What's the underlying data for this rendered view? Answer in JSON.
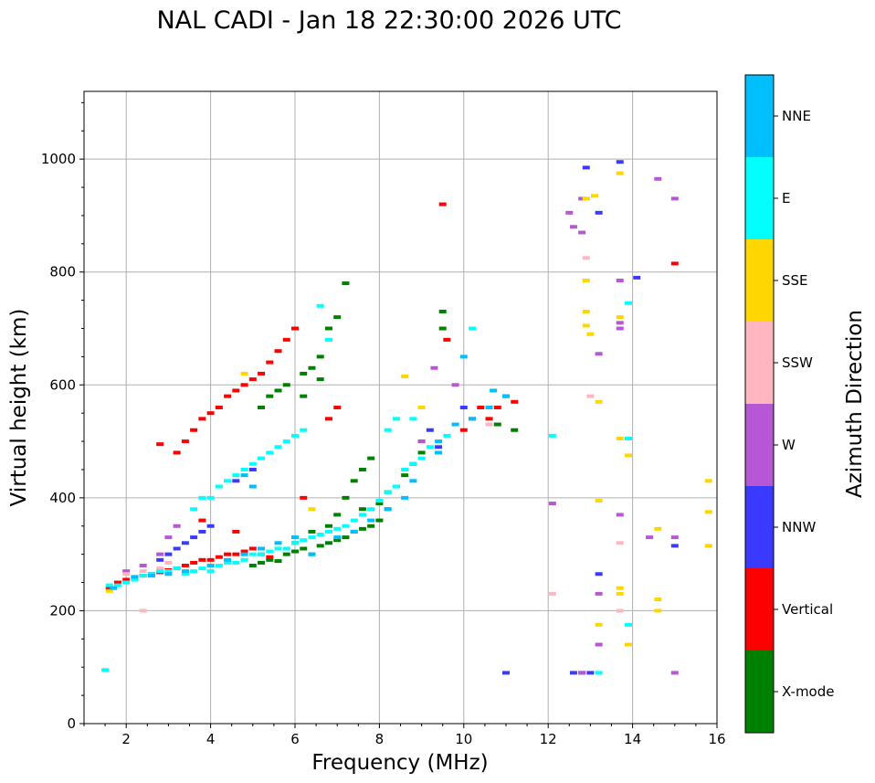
{
  "chart_data": {
    "type": "scatter",
    "title": "NAL CADI - Jan 18 22:30:00 2026 UTC",
    "xlabel": "Frequency (MHz)",
    "ylabel": "Virtual height (km)",
    "xlim": [
      1,
      16
    ],
    "ylim": [
      0,
      1120
    ],
    "xticks": [
      2,
      4,
      6,
      8,
      10,
      12,
      14,
      16
    ],
    "yticks": [
      0,
      200,
      400,
      600,
      800,
      1000
    ],
    "grid": true,
    "colorbar": {
      "label": "Azimuth Direction",
      "categories": [
        "X-mode",
        "Vertical",
        "NNW",
        "W",
        "SSW",
        "SSE",
        "E",
        "NNE"
      ],
      "colors": [
        "#008000",
        "#ff0000",
        "#3a3aff",
        "#b657d6",
        "#ffb6c1",
        "#ffd700",
        "#00ffff",
        "#00bfff"
      ]
    },
    "series": [
      {
        "name": "X-mode",
        "points": [
          [
            5.0,
            280
          ],
          [
            5.2,
            285
          ],
          [
            5.4,
            290
          ],
          [
            5.6,
            288
          ],
          [
            5.8,
            300
          ],
          [
            6.0,
            305
          ],
          [
            6.2,
            310
          ],
          [
            6.4,
            300
          ],
          [
            6.6,
            315
          ],
          [
            6.8,
            320
          ],
          [
            7.0,
            325
          ],
          [
            7.2,
            330
          ],
          [
            7.4,
            340
          ],
          [
            7.6,
            345
          ],
          [
            7.8,
            350
          ],
          [
            8.0,
            360
          ],
          [
            8.2,
            380
          ],
          [
            8.4,
            420
          ],
          [
            8.6,
            440
          ],
          [
            8.8,
            460
          ],
          [
            9.0,
            480
          ],
          [
            6.8,
            350
          ],
          [
            7.0,
            370
          ],
          [
            7.2,
            400
          ],
          [
            7.4,
            430
          ],
          [
            7.6,
            450
          ],
          [
            7.8,
            470
          ],
          [
            8.0,
            390
          ],
          [
            8.2,
            410
          ],
          [
            5.2,
            560
          ],
          [
            5.4,
            580
          ],
          [
            5.6,
            590
          ],
          [
            5.8,
            600
          ],
          [
            6.2,
            620
          ],
          [
            6.4,
            630
          ],
          [
            6.6,
            650
          ],
          [
            6.8,
            700
          ],
          [
            7.0,
            720
          ],
          [
            7.2,
            780
          ],
          [
            9.5,
            700
          ],
          [
            9.5,
            730
          ],
          [
            10.8,
            530
          ],
          [
            11.2,
            520
          ],
          [
            6.2,
            580
          ],
          [
            6.6,
            610
          ],
          [
            7.6,
            380
          ],
          [
            6.0,
            320
          ],
          [
            6.4,
            340
          ]
        ]
      },
      {
        "name": "Vertical",
        "points": [
          [
            1.6,
            240
          ],
          [
            1.8,
            250
          ],
          [
            2.0,
            255
          ],
          [
            2.2,
            258
          ],
          [
            2.4,
            262
          ],
          [
            2.6,
            265
          ],
          [
            2.8,
            268
          ],
          [
            3.0,
            272
          ],
          [
            3.2,
            275
          ],
          [
            3.4,
            280
          ],
          [
            3.6,
            285
          ],
          [
            3.8,
            290
          ],
          [
            4.0,
            290
          ],
          [
            4.2,
            295
          ],
          [
            4.4,
            300
          ],
          [
            4.6,
            300
          ],
          [
            4.8,
            305
          ],
          [
            5.0,
            310
          ],
          [
            5.2,
            300
          ],
          [
            5.4,
            295
          ],
          [
            3.2,
            480
          ],
          [
            3.4,
            500
          ],
          [
            3.6,
            520
          ],
          [
            3.8,
            540
          ],
          [
            4.0,
            550
          ],
          [
            4.2,
            560
          ],
          [
            4.4,
            580
          ],
          [
            4.6,
            590
          ],
          [
            4.8,
            600
          ],
          [
            5.0,
            610
          ],
          [
            5.2,
            620
          ],
          [
            5.4,
            640
          ],
          [
            5.6,
            660
          ],
          [
            5.8,
            680
          ],
          [
            6.0,
            700
          ],
          [
            6.8,
            540
          ],
          [
            7.0,
            560
          ],
          [
            9.5,
            920
          ],
          [
            9.6,
            680
          ],
          [
            10.0,
            520
          ],
          [
            10.2,
            540
          ],
          [
            10.4,
            560
          ],
          [
            10.6,
            540
          ],
          [
            10.8,
            560
          ],
          [
            11.0,
            580
          ],
          [
            11.2,
            570
          ],
          [
            15.0,
            815
          ],
          [
            2.8,
            495
          ],
          [
            4.6,
            340
          ],
          [
            3.8,
            360
          ],
          [
            6.2,
            400
          ]
        ]
      },
      {
        "name": "NNW",
        "points": [
          [
            2.8,
            290
          ],
          [
            3.0,
            300
          ],
          [
            3.2,
            310
          ],
          [
            3.4,
            320
          ],
          [
            3.6,
            330
          ],
          [
            3.8,
            340
          ],
          [
            4.0,
            350
          ],
          [
            4.6,
            430
          ],
          [
            5.0,
            450
          ],
          [
            9.0,
            500
          ],
          [
            9.2,
            520
          ],
          [
            9.4,
            490
          ],
          [
            10.0,
            560
          ],
          [
            11.0,
            90
          ],
          [
            12.6,
            90
          ],
          [
            12.8,
            90
          ],
          [
            13.0,
            90
          ],
          [
            12.9,
            985
          ],
          [
            13.2,
            905
          ],
          [
            13.2,
            265
          ],
          [
            14.1,
            790
          ],
          [
            15.0,
            315
          ],
          [
            13.7,
            995
          ]
        ]
      },
      {
        "name": "W",
        "points": [
          [
            2.0,
            270
          ],
          [
            2.4,
            280
          ],
          [
            2.8,
            300
          ],
          [
            3.0,
            330
          ],
          [
            3.2,
            350
          ],
          [
            9.0,
            500
          ],
          [
            9.3,
            630
          ],
          [
            9.8,
            600
          ],
          [
            12.8,
            930
          ],
          [
            12.8,
            870
          ],
          [
            12.6,
            880
          ],
          [
            12.5,
            905
          ],
          [
            13.2,
            655
          ],
          [
            13.2,
            140
          ],
          [
            13.2,
            230
          ],
          [
            13.7,
            700
          ],
          [
            13.7,
            710
          ],
          [
            13.7,
            785
          ],
          [
            14.6,
            965
          ],
          [
            15.0,
            930
          ],
          [
            15.0,
            330
          ],
          [
            15.0,
            90
          ],
          [
            12.8,
            90
          ],
          [
            12.1,
            390
          ],
          [
            14.4,
            330
          ],
          [
            13.7,
            370
          ]
        ]
      },
      {
        "name": "SSW",
        "points": [
          [
            2.0,
            265
          ],
          [
            2.4,
            270
          ],
          [
            2.8,
            275
          ],
          [
            2.4,
            200
          ],
          [
            3.0,
            285
          ],
          [
            10.6,
            530
          ],
          [
            12.1,
            230
          ],
          [
            12.9,
            825
          ],
          [
            13.0,
            580
          ],
          [
            13.7,
            320
          ],
          [
            13.7,
            200
          ]
        ]
      },
      {
        "name": "SSE",
        "points": [
          [
            1.6,
            235
          ],
          [
            2.0,
            250
          ],
          [
            4.8,
            620
          ],
          [
            6.4,
            380
          ],
          [
            8.6,
            615
          ],
          [
            9.0,
            560
          ],
          [
            12.9,
            930
          ],
          [
            13.1,
            935
          ],
          [
            12.9,
            785
          ],
          [
            12.9,
            730
          ],
          [
            12.9,
            705
          ],
          [
            13.0,
            690
          ],
          [
            13.2,
            570
          ],
          [
            13.2,
            395
          ],
          [
            13.2,
            175
          ],
          [
            13.7,
            975
          ],
          [
            13.7,
            720
          ],
          [
            13.7,
            505
          ],
          [
            13.7,
            240
          ],
          [
            13.7,
            230
          ],
          [
            13.9,
            475
          ],
          [
            13.9,
            140
          ],
          [
            14.6,
            345
          ],
          [
            14.6,
            220
          ],
          [
            14.6,
            200
          ],
          [
            15.8,
            430
          ],
          [
            15.8,
            375
          ],
          [
            15.8,
            315
          ]
        ]
      },
      {
        "name": "E",
        "points": [
          [
            1.6,
            245
          ],
          [
            1.8,
            245
          ],
          [
            2.0,
            250
          ],
          [
            2.2,
            255
          ],
          [
            2.4,
            262
          ],
          [
            2.6,
            265
          ],
          [
            2.8,
            270
          ],
          [
            3.0,
            270
          ],
          [
            3.2,
            275
          ],
          [
            3.4,
            265
          ],
          [
            3.6,
            270
          ],
          [
            3.8,
            275
          ],
          [
            4.0,
            270
          ],
          [
            4.2,
            280
          ],
          [
            4.4,
            285
          ],
          [
            4.6,
            285
          ],
          [
            4.8,
            290
          ],
          [
            5.0,
            300
          ],
          [
            5.2,
            300
          ],
          [
            5.4,
            305
          ],
          [
            5.6,
            310
          ],
          [
            5.8,
            310
          ],
          [
            6.0,
            320
          ],
          [
            6.2,
            325
          ],
          [
            6.4,
            330
          ],
          [
            6.6,
            335
          ],
          [
            6.8,
            340
          ],
          [
            7.0,
            345
          ],
          [
            7.2,
            350
          ],
          [
            7.4,
            360
          ],
          [
            7.6,
            370
          ],
          [
            7.8,
            380
          ],
          [
            8.0,
            395
          ],
          [
            8.2,
            410
          ],
          [
            8.4,
            420
          ],
          [
            8.6,
            450
          ],
          [
            8.8,
            460
          ],
          [
            9.0,
            470
          ],
          [
            9.2,
            490
          ],
          [
            9.6,
            510
          ],
          [
            3.6,
            380
          ],
          [
            3.8,
            400
          ],
          [
            4.0,
            400
          ],
          [
            4.2,
            420
          ],
          [
            4.4,
            430
          ],
          [
            4.6,
            440
          ],
          [
            4.8,
            450
          ],
          [
            5.0,
            460
          ],
          [
            5.2,
            470
          ],
          [
            5.4,
            480
          ],
          [
            5.6,
            490
          ],
          [
            5.8,
            500
          ],
          [
            6.0,
            510
          ],
          [
            6.2,
            520
          ],
          [
            6.6,
            740
          ],
          [
            6.8,
            680
          ],
          [
            8.2,
            520
          ],
          [
            8.4,
            540
          ],
          [
            8.8,
            540
          ],
          [
            10.2,
            700
          ],
          [
            13.2,
            90
          ],
          [
            13.9,
            175
          ],
          [
            13.9,
            505
          ],
          [
            13.9,
            745
          ],
          [
            12.1,
            510
          ],
          [
            1.5,
            95
          ]
        ]
      },
      {
        "name": "NNE",
        "points": [
          [
            1.7,
            240
          ],
          [
            2.2,
            260
          ],
          [
            2.6,
            262
          ],
          [
            3.0,
            265
          ],
          [
            3.4,
            270
          ],
          [
            4.0,
            280
          ],
          [
            4.4,
            290
          ],
          [
            4.8,
            300
          ],
          [
            5.2,
            310
          ],
          [
            5.6,
            320
          ],
          [
            6.0,
            330
          ],
          [
            6.4,
            300
          ],
          [
            7.0,
            330
          ],
          [
            7.4,
            340
          ],
          [
            7.8,
            360
          ],
          [
            8.2,
            380
          ],
          [
            8.6,
            400
          ],
          [
            8.8,
            430
          ],
          [
            9.4,
            500
          ],
          [
            9.8,
            530
          ],
          [
            10.2,
            540
          ],
          [
            10.6,
            560
          ],
          [
            10.7,
            590
          ],
          [
            11.0,
            580
          ],
          [
            9.4,
            480
          ],
          [
            5.0,
            420
          ],
          [
            4.8,
            440
          ],
          [
            10.0,
            650
          ]
        ]
      }
    ]
  }
}
